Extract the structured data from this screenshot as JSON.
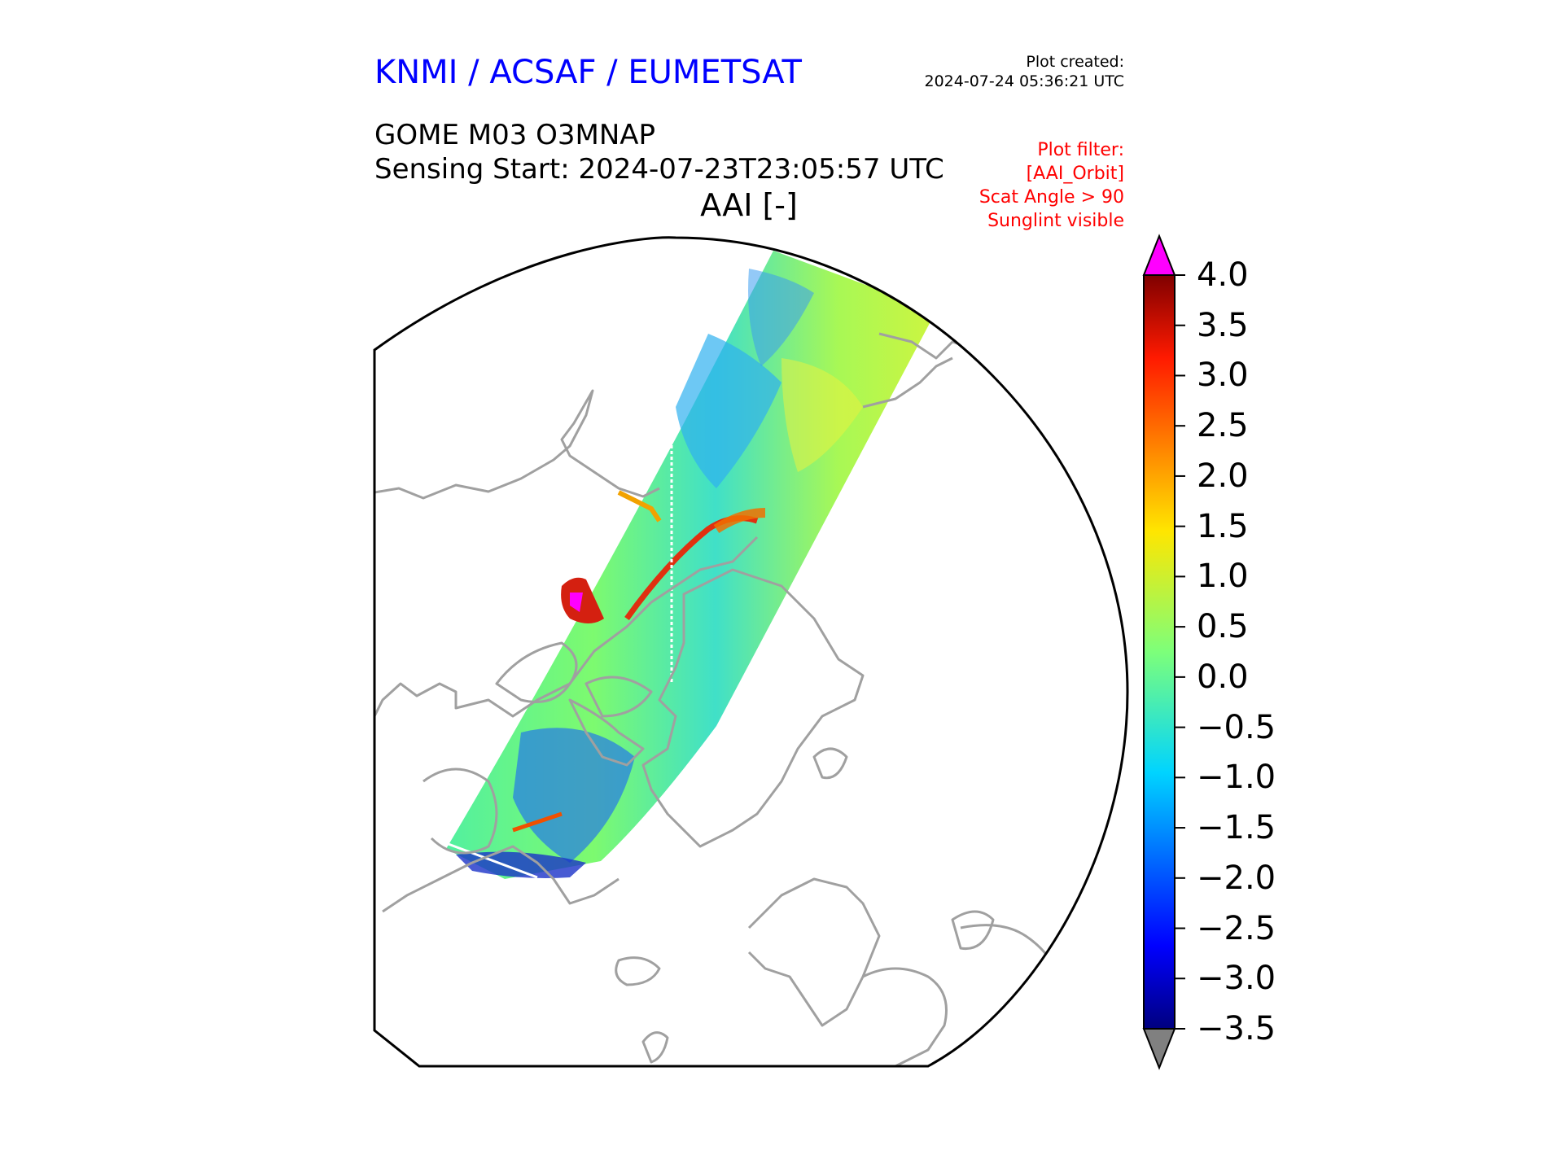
{
  "header": {
    "organisation": "KNMI / ACSAF / EUMETSAT",
    "plot_created_label": "Plot created:",
    "plot_created_time": "2024-07-24 05:36:21 UTC",
    "product": "GOME M03 O3MNAP",
    "sensing_start": "Sensing Start: 2024-07-23T23:05:57 UTC",
    "quantity": "AAI [-]"
  },
  "filter": {
    "lines": [
      "Plot filter:",
      "[AAI_Orbit]",
      "Scat Angle > 90",
      "Sunglint visible"
    ]
  },
  "colorbar": {
    "ticks": [
      "4.0",
      "3.5",
      "3.0",
      "2.5",
      "2.0",
      "1.5",
      "1.0",
      "0.5",
      "0.0",
      "−0.5",
      "−1.0",
      "−1.5",
      "−2.0",
      "−2.5",
      "−3.0",
      "−3.5"
    ],
    "min": -3.5,
    "max": 4.0,
    "colormap": "jet",
    "over_color": "#ff00ff",
    "under_color": "#808080"
  },
  "colors": {
    "organisation": "#0000ff",
    "filter_text": "#ff0000",
    "coastline": "#a0a0a0",
    "map_border": "#000000"
  },
  "map": {
    "projection": "north-polar-stereographic",
    "features": [
      "coastlines",
      "AAI satellite swath"
    ]
  }
}
